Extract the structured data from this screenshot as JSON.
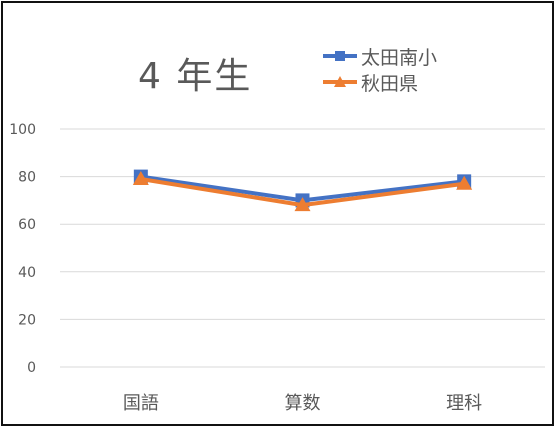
{
  "chart_data": {
    "type": "line",
    "title": "4 年生",
    "categories": [
      "国語",
      "算数",
      "理科"
    ],
    "series": [
      {
        "name": "太田南小",
        "values": [
          80,
          70,
          78
        ],
        "color": "#4472C4",
        "marker": "square"
      },
      {
        "name": "秋田県",
        "values": [
          79,
          68,
          77
        ],
        "color": "#ED7D31",
        "marker": "triangle"
      }
    ],
    "yticks": [
      0,
      20,
      40,
      60,
      80,
      100
    ],
    "ylim": [
      0,
      100
    ],
    "xlabel": "",
    "ylabel": "",
    "grid": true,
    "legend": "top-right"
  }
}
